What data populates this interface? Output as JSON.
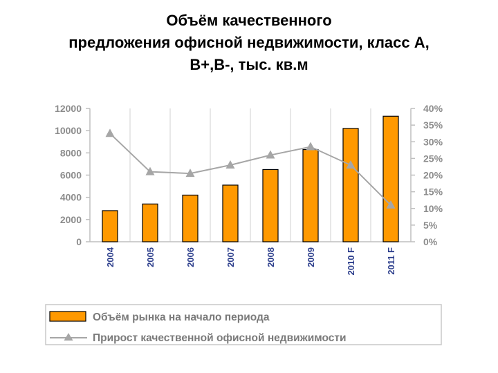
{
  "chart_data": {
    "type": "bar",
    "title_lines": [
      "Объём качественного",
      "предложения офисной недвижимости, класс А,",
      "В+,В-, тыс. кв.м"
    ],
    "categories": [
      "2004",
      "2005",
      "2006",
      "2007",
      "2008",
      "2009",
      "2010 F",
      "2011 F"
    ],
    "series": [
      {
        "name": "Объём рынка на начало периода",
        "kind": "bar",
        "axis": "left",
        "color": "#ff9900",
        "values": [
          2800,
          3400,
          4200,
          5100,
          6500,
          8300,
          10200,
          11300
        ]
      },
      {
        "name": "Прирост качественной офисной недвижимости",
        "kind": "line",
        "axis": "right",
        "color": "#a6a6a6",
        "marker": "triangle",
        "values": [
          32.5,
          21,
          20.5,
          23,
          26,
          28.5,
          23,
          11
        ]
      }
    ],
    "left_axis": {
      "ylim": [
        0,
        12000
      ],
      "ticks": [
        "0",
        "2000",
        "4000",
        "6000",
        "8000",
        "10000",
        "12000"
      ]
    },
    "right_axis": {
      "ylim": [
        0,
        40
      ],
      "ticks": [
        "0%",
        "5%",
        "10%",
        "15%",
        "20%",
        "25%",
        "30%",
        "35%",
        "40%"
      ]
    },
    "grid": "vertical",
    "legend_position": "bottom"
  }
}
